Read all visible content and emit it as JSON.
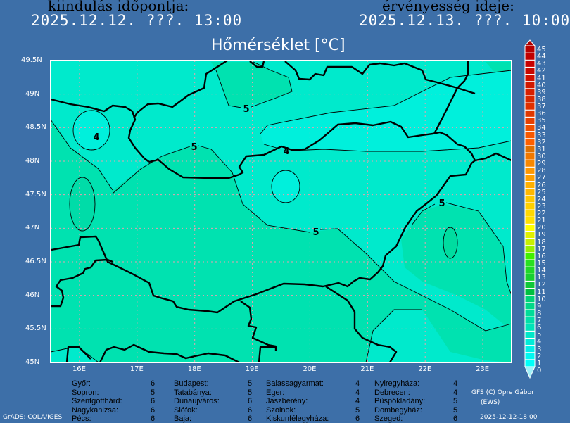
{
  "header": {
    "init_label": "kiindulás időpontja:",
    "init_value": "2025.12.12. ???. 13:00",
    "valid_label": "érvényesség ideje:",
    "valid_value": "2025.12.13. ???. 10:00",
    "title": "Hőmérséklet [°C]"
  },
  "map": {
    "lon_ticks": [
      "16E",
      "17E",
      "18E",
      "19E",
      "20E",
      "21E",
      "22E",
      "23E"
    ],
    "lat_ticks": [
      "49.5N",
      "49N",
      "48.5N",
      "48N",
      "47.5N",
      "47N",
      "46.5N",
      "46N",
      "45.5N",
      "45N"
    ],
    "lon_range": [
      15.5,
      23.5
    ],
    "lat_range": [
      45,
      49.5
    ],
    "grid": true,
    "contour_labels": [
      "5",
      "4",
      "5",
      "4",
      "5",
      "5"
    ],
    "fill_colors": {
      "3-4": "#00f0dc",
      "4-5": "#00eacc",
      "5-6": "#00e2b0"
    },
    "border_color": "#000000",
    "grid_color": "#e8a0b0"
  },
  "colorbar": {
    "labels": [
      "0",
      "1",
      "2",
      "3",
      "4",
      "5",
      "6",
      "7",
      "8",
      "9",
      "10",
      "11",
      "12",
      "13",
      "14",
      "15",
      "16",
      "17",
      "18",
      "19",
      "20",
      "21",
      "22",
      "23",
      "24",
      "25",
      "26",
      "27",
      "28",
      "29",
      "30",
      "31",
      "32",
      "33",
      "34",
      "35",
      "36",
      "37",
      "38",
      "39",
      "40",
      "41",
      "42",
      "43",
      "44",
      "45"
    ],
    "colors": [
      "#00fff8",
      "#00f8f0",
      "#00f0e8",
      "#00ecd8",
      "#00e8c8",
      "#00e4b8",
      "#00e0a8",
      "#00dc98",
      "#00d888",
      "#00d478",
      "#00c040",
      "#10c838",
      "#18d030",
      "#20d828",
      "#28e020",
      "#40f000",
      "#98f000",
      "#c8f000",
      "#e0f000",
      "#ffff00",
      "#ffe000",
      "#ffd800",
      "#ffd000",
      "#ffc800",
      "#ffb800",
      "#ffb000",
      "#ffa000",
      "#ff9800",
      "#f88800",
      "#f07800",
      "#e07000",
      "#ff6000",
      "#f85800",
      "#f05000",
      "#e84000",
      "#e03800",
      "#e03000",
      "#d82800",
      "#d82000",
      "#d01800",
      "#d01000",
      "#c80800",
      "#c80000",
      "#c00000",
      "#b80000"
    ],
    "top_arrow_color": "#b00000",
    "bottom_arrow_color": "#a0f0f8"
  },
  "stations": [
    [
      {
        "name": "Győr:",
        "value": "6"
      },
      {
        "name": "Sopron:",
        "value": "5"
      },
      {
        "name": "Szentgotthárd:",
        "value": "6"
      },
      {
        "name": "Nagykanizsa:",
        "value": "6"
      },
      {
        "name": "Pécs:",
        "value": "6"
      }
    ],
    [
      {
        "name": "Budapest:",
        "value": "5"
      },
      {
        "name": "Tatabánya:",
        "value": "5"
      },
      {
        "name": "Dunaujváros:",
        "value": "6"
      },
      {
        "name": "Siófok:",
        "value": "6"
      },
      {
        "name": "Baja:",
        "value": "6"
      }
    ],
    [
      {
        "name": "Balassagyarmat:",
        "value": "4"
      },
      {
        "name": "Eger:",
        "value": "4"
      },
      {
        "name": "Jászberény:",
        "value": "4"
      },
      {
        "name": "Szolnok:",
        "value": "5"
      },
      {
        "name": "Kiskunfélegyháza:",
        "value": "6"
      }
    ],
    [
      {
        "name": "Nyiregyháza:",
        "value": "4"
      },
      {
        "name": "Debrecen:",
        "value": "4"
      },
      {
        "name": "Püspökladány:",
        "value": "5"
      },
      {
        "name": "Dombegyház:",
        "value": "5"
      },
      {
        "name": "Szeged:",
        "value": "6"
      }
    ]
  ],
  "footer": {
    "credit": "GFS (C) Opre Gábor",
    "credit2": "(EWS)",
    "grads": "GrADS: COLA/IGES",
    "timestamp": "2025-12-12-18:00"
  }
}
